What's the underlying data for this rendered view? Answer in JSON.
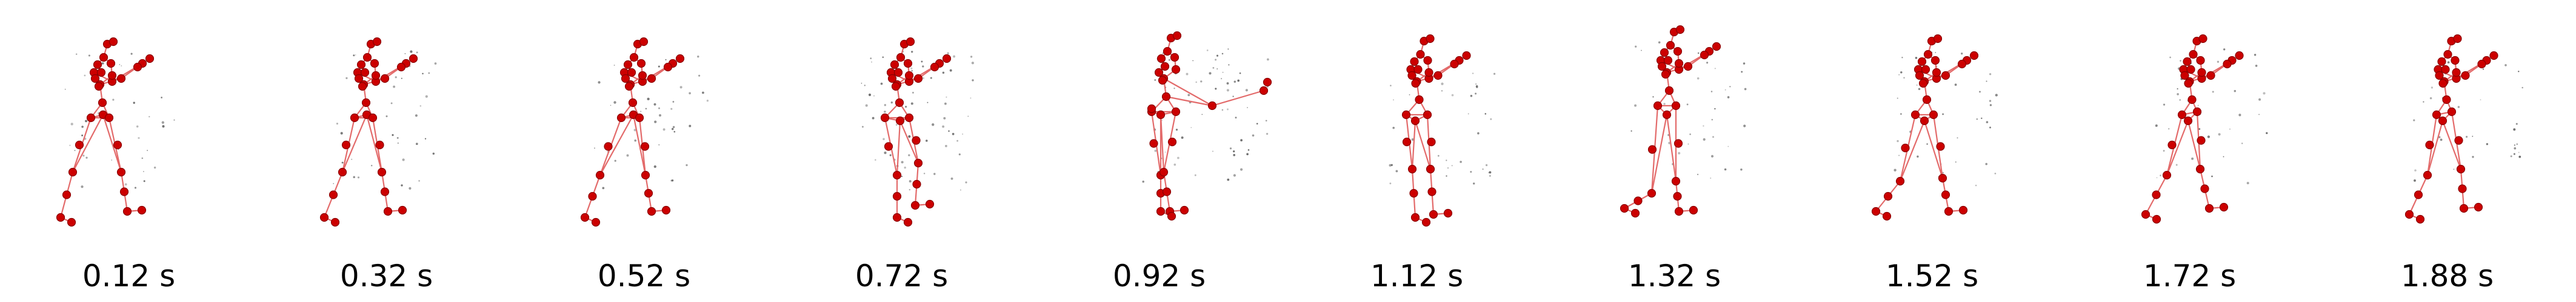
{
  "frames": [
    {
      "label": "0.12 s"
    },
    {
      "label": "0.32 s"
    },
    {
      "label": "0.52 s"
    },
    {
      "label": "0.72 s"
    },
    {
      "label": "0.92 s"
    },
    {
      "label": "1.12 s"
    },
    {
      "label": "1.32 s"
    },
    {
      "label": "1.52 s"
    },
    {
      "label": "1.72 s"
    },
    {
      "label": "1.88 s"
    }
  ],
  "colors": {
    "joint": "#cc0000",
    "joint_outline": "#8b0000",
    "bone": "#e36a6a",
    "noise": "#555555",
    "caption": "#000000"
  }
}
